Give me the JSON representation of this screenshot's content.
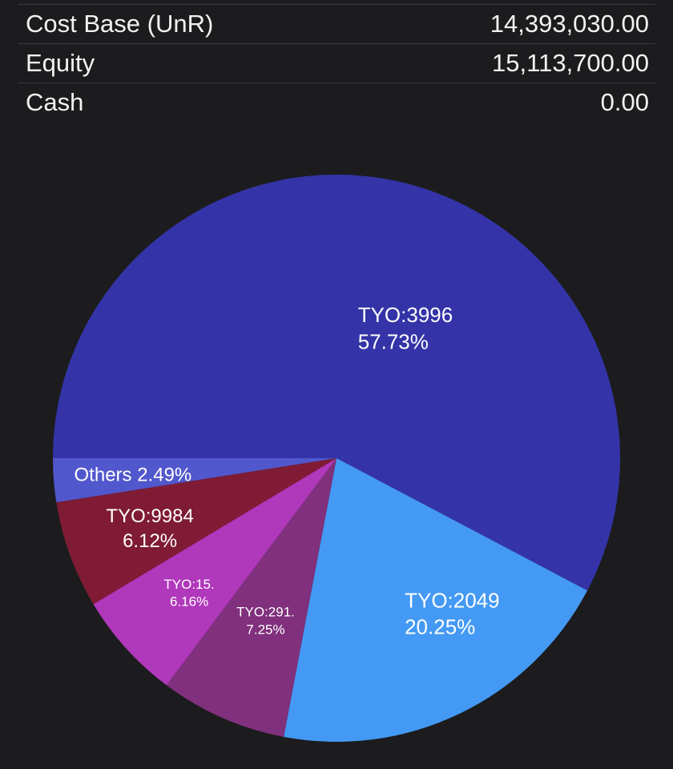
{
  "summary": {
    "rows": [
      {
        "label": "Cost Base (UnR)",
        "value": "14,393,030.00"
      },
      {
        "label": "Equity",
        "value": "15,113,700.00"
      },
      {
        "label": "Cash",
        "value": "0.00"
      }
    ]
  },
  "chart_data": {
    "type": "pie",
    "title": "",
    "slices": [
      {
        "name": "TYO:3996",
        "display_name": "TYO:3996",
        "percent": 57.73,
        "percent_label": "57.73%",
        "color": "#3434a8"
      },
      {
        "name": "TYO:2049",
        "display_name": "TYO:2049",
        "percent": 20.25,
        "percent_label": "20.25%",
        "color": "#4499f4"
      },
      {
        "name": "TYO:291.",
        "display_name": "TYO:291.",
        "percent": 7.25,
        "percent_label": "7.25%",
        "color": "#80307d"
      },
      {
        "name": "TYO:15.",
        "display_name": "TYO:15.",
        "percent": 6.16,
        "percent_label": "6.16%",
        "color": "#b038bb"
      },
      {
        "name": "TYO:9984",
        "display_name": "TYO:9984",
        "percent": 6.12,
        "percent_label": "6.12%",
        "color": "#7f1b35"
      },
      {
        "name": "Others",
        "display_name": "Others",
        "percent": 2.49,
        "percent_label": "2.49%",
        "color": "#5157cc"
      }
    ]
  }
}
